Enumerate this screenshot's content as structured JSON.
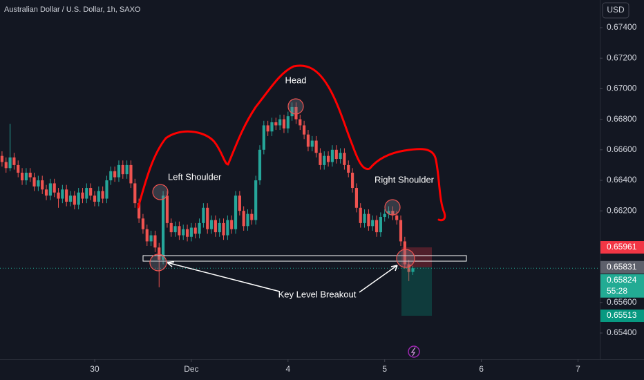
{
  "chart_data": {
    "type": "candlestick",
    "title": "Australian Dollar / U.S. Dollar, 1h, SAXO",
    "currency": "USD",
    "up_color": "#26a69a",
    "down_color": "#ef5350",
    "grid": false,
    "xlim": [
      -0.5,
      148.4
    ],
    "xticks": [
      {
        "value": 23,
        "label": "30"
      },
      {
        "value": 47,
        "label": "Dec"
      },
      {
        "value": 71,
        "label": "4"
      },
      {
        "value": 95,
        "label": "5"
      },
      {
        "value": 119,
        "label": "6"
      },
      {
        "value": 143,
        "label": "7"
      }
    ],
    "ylim": [
      0.65228,
      0.67581
    ],
    "yticks": [
      {
        "value": 0.674,
        "label": "0.67400"
      },
      {
        "value": 0.672,
        "label": "0.67200"
      },
      {
        "value": 0.67,
        "label": "0.67000"
      },
      {
        "value": 0.668,
        "label": "0.66800"
      },
      {
        "value": 0.666,
        "label": "0.66600"
      },
      {
        "value": 0.664,
        "label": "0.66400"
      },
      {
        "value": 0.662,
        "label": "0.66200"
      },
      {
        "value": 0.656,
        "label": "0.65600"
      },
      {
        "value": 0.654,
        "label": "0.65400"
      }
    ],
    "open": [
      0.6656,
      0.6652,
      0.6648,
      0.6655,
      0.665,
      0.6645,
      0.664,
      0.6645,
      0.6642,
      0.6636,
      0.664,
      0.6634,
      0.663,
      0.6638,
      0.6632,
      0.6628,
      0.6634,
      0.6626,
      0.663,
      0.6624,
      0.6632,
      0.6628,
      0.6635,
      0.663,
      0.6626,
      0.6633,
      0.6628,
      0.664,
      0.6646,
      0.6642,
      0.665,
      0.6644,
      0.665,
      0.6638,
      0.6625,
      0.6615,
      0.6608,
      0.66,
      0.6604,
      0.6596,
      0.6588,
      0.663,
      0.6612,
      0.6606,
      0.661,
      0.6604,
      0.6608,
      0.6603,
      0.6609,
      0.6605,
      0.6612,
      0.6622,
      0.6608,
      0.6614,
      0.6606,
      0.6612,
      0.6604,
      0.6614,
      0.6608,
      0.663,
      0.662,
      0.661,
      0.6618,
      0.6614,
      0.664,
      0.666,
      0.6676,
      0.6672,
      0.6678,
      0.6676,
      0.668,
      0.6674,
      0.6682,
      0.6688,
      0.668,
      0.6676,
      0.667,
      0.6662,
      0.6666,
      0.6658,
      0.665,
      0.6656,
      0.6652,
      0.666,
      0.6654,
      0.6658,
      0.665,
      0.6645,
      0.6635,
      0.6622,
      0.6612,
      0.6618,
      0.661,
      0.6614,
      0.6606,
      0.6616,
      0.6618,
      0.662,
      0.6617,
      0.6614,
      0.66,
      0.6585,
      0.658
    ],
    "high": [
      0.6659,
      0.6655,
      0.6677,
      0.6658,
      0.6653,
      0.6648,
      0.6648,
      0.6648,
      0.6645,
      0.6643,
      0.6643,
      0.6637,
      0.6641,
      0.6641,
      0.6635,
      0.6637,
      0.6637,
      0.6633,
      0.6633,
      0.6635,
      0.6635,
      0.6638,
      0.6638,
      0.6633,
      0.6636,
      0.6636,
      0.6643,
      0.6649,
      0.6649,
      0.6653,
      0.6653,
      0.6653,
      0.6653,
      0.6641,
      0.6628,
      0.6618,
      0.6611,
      0.6607,
      0.6607,
      0.6599,
      0.6633,
      0.6633,
      0.6615,
      0.6613,
      0.6613,
      0.6611,
      0.6611,
      0.6612,
      0.6612,
      0.6615,
      0.6625,
      0.6625,
      0.6617,
      0.6617,
      0.6615,
      0.6615,
      0.6617,
      0.6617,
      0.6633,
      0.6633,
      0.6623,
      0.6621,
      0.6621,
      0.6643,
      0.6663,
      0.6679,
      0.6679,
      0.6681,
      0.6681,
      0.6683,
      0.6683,
      0.6685,
      0.6691,
      0.6691,
      0.6683,
      0.6679,
      0.6673,
      0.6669,
      0.6669,
      0.6661,
      0.6659,
      0.6659,
      0.6663,
      0.6663,
      0.6661,
      0.6661,
      0.6653,
      0.6648,
      0.6638,
      0.6625,
      0.6621,
      0.6621,
      0.6617,
      0.6617,
      0.6619,
      0.6621,
      0.6623,
      0.6623,
      0.662,
      0.6617,
      0.6603,
      0.6588,
      0.6584
    ],
    "low": [
      0.6649,
      0.6645,
      0.6646,
      0.6647,
      0.6642,
      0.6637,
      0.6637,
      0.6639,
      0.6633,
      0.6633,
      0.6631,
      0.6627,
      0.6627,
      0.6629,
      0.6622,
      0.6625,
      0.6623,
      0.6623,
      0.6621,
      0.6621,
      0.6625,
      0.6625,
      0.6627,
      0.6623,
      0.6623,
      0.6625,
      0.6625,
      0.6637,
      0.6639,
      0.6639,
      0.6641,
      0.6641,
      0.6635,
      0.6622,
      0.6612,
      0.6605,
      0.6597,
      0.6597,
      0.6593,
      0.657,
      0.6585,
      0.6609,
      0.6603,
      0.6603,
      0.6601,
      0.6601,
      0.66,
      0.66,
      0.6602,
      0.6602,
      0.6609,
      0.6605,
      0.6605,
      0.6603,
      0.6603,
      0.6601,
      0.6601,
      0.6605,
      0.6605,
      0.6617,
      0.6607,
      0.6607,
      0.6611,
      0.6611,
      0.6637,
      0.6657,
      0.6669,
      0.6669,
      0.6673,
      0.6673,
      0.6671,
      0.6671,
      0.6679,
      0.6677,
      0.6673,
      0.6667,
      0.6659,
      0.6659,
      0.6655,
      0.6647,
      0.6647,
      0.6649,
      0.6649,
      0.6651,
      0.6651,
      0.6647,
      0.6642,
      0.6632,
      0.6619,
      0.6609,
      0.6609,
      0.6607,
      0.6607,
      0.6603,
      0.6603,
      0.6613,
      0.6615,
      0.6614,
      0.6611,
      0.6597,
      0.6582,
      0.6574,
      0.6578
    ],
    "close": [
      0.6652,
      0.6648,
      0.6655,
      0.665,
      0.6645,
      0.664,
      0.6645,
      0.6642,
      0.6636,
      0.664,
      0.6634,
      0.663,
      0.6638,
      0.6632,
      0.6628,
      0.6634,
      0.6626,
      0.663,
      0.6624,
      0.6632,
      0.6628,
      0.6635,
      0.663,
      0.6626,
      0.6633,
      0.6628,
      0.664,
      0.6646,
      0.6642,
      0.665,
      0.6644,
      0.665,
      0.6638,
      0.6625,
      0.6615,
      0.6608,
      0.66,
      0.6604,
      0.6596,
      0.6588,
      0.663,
      0.6612,
      0.6606,
      0.661,
      0.6604,
      0.6608,
      0.6603,
      0.6609,
      0.6605,
      0.6612,
      0.6622,
      0.6608,
      0.6614,
      0.6606,
      0.6612,
      0.6604,
      0.6614,
      0.6608,
      0.663,
      0.662,
      0.661,
      0.6618,
      0.6614,
      0.664,
      0.666,
      0.6676,
      0.6672,
      0.6678,
      0.6676,
      0.668,
      0.6674,
      0.6682,
      0.6688,
      0.668,
      0.6676,
      0.667,
      0.6662,
      0.6666,
      0.6658,
      0.665,
      0.6656,
      0.6652,
      0.666,
      0.6654,
      0.6658,
      0.665,
      0.6645,
      0.6635,
      0.6622,
      0.6612,
      0.6618,
      0.661,
      0.6614,
      0.6606,
      0.6616,
      0.6618,
      0.662,
      0.6617,
      0.6614,
      0.66,
      0.6585,
      0.658,
      0.65824
    ],
    "price_tags": [
      {
        "value": 0.65961,
        "color": "#f23645"
      },
      {
        "value": 0.65831,
        "color": "#5d606b"
      },
      {
        "value": 0.65824,
        "color": "#22ab94",
        "countdown": "55:28"
      },
      {
        "value": 0.65513,
        "color": "#089981"
      }
    ],
    "annotations": [
      "Left Shoulder",
      "Head",
      "Right Shoulder",
      "Key Level Breakout"
    ]
  }
}
